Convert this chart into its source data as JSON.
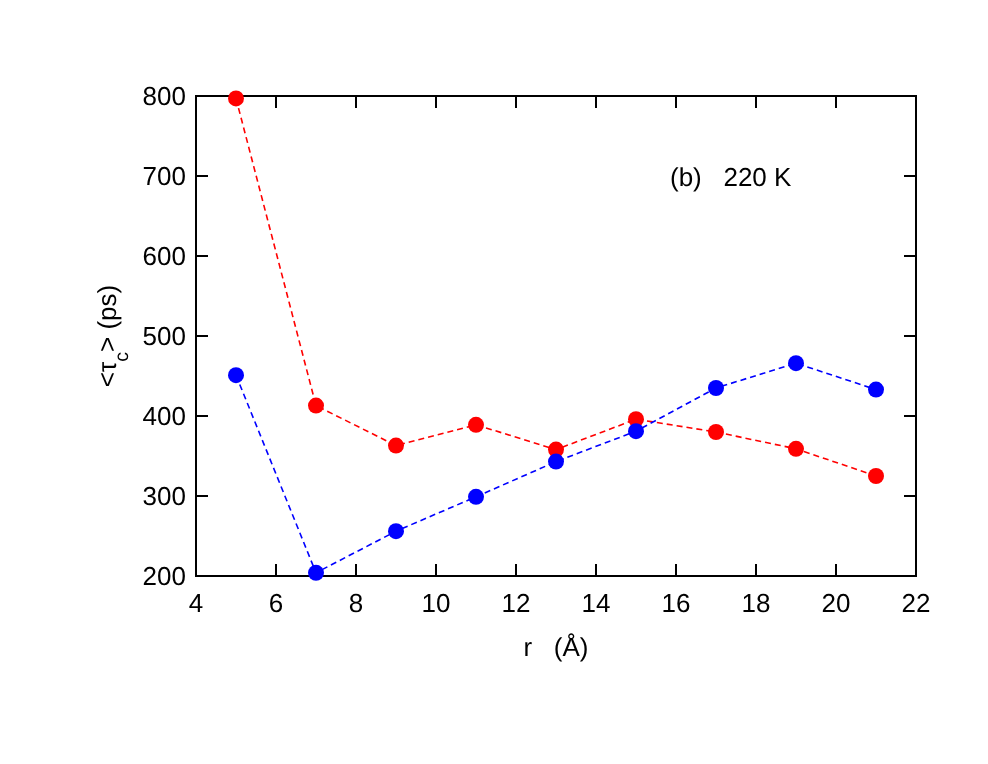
{
  "chart_data": {
    "type": "line",
    "xlabel": "r   (Å)",
    "ylabel": "<τ$_{c}$> (ps)",
    "annotations": [
      "(b)   220 K"
    ],
    "x": [
      5,
      7,
      9,
      11,
      13,
      15,
      17,
      19,
      21
    ],
    "series": [
      {
        "color": "#ff0000",
        "values": [
          797,
          413,
          363,
          389,
          358,
          396,
          380,
          359,
          325
        ]
      },
      {
        "color": "#0000ff",
        "values": [
          451,
          204,
          256,
          299,
          343,
          381,
          435,
          466,
          433
        ]
      }
    ],
    "xlim": [
      4,
      22
    ],
    "xticks": [
      4,
      6,
      8,
      10,
      12,
      14,
      16,
      18,
      20,
      22
    ],
    "ylim": [
      200,
      800
    ],
    "yticks": [
      200,
      300,
      400,
      500,
      600,
      700,
      800
    ],
    "grid": false,
    "marker": "circle",
    "line_style": "dashed"
  }
}
